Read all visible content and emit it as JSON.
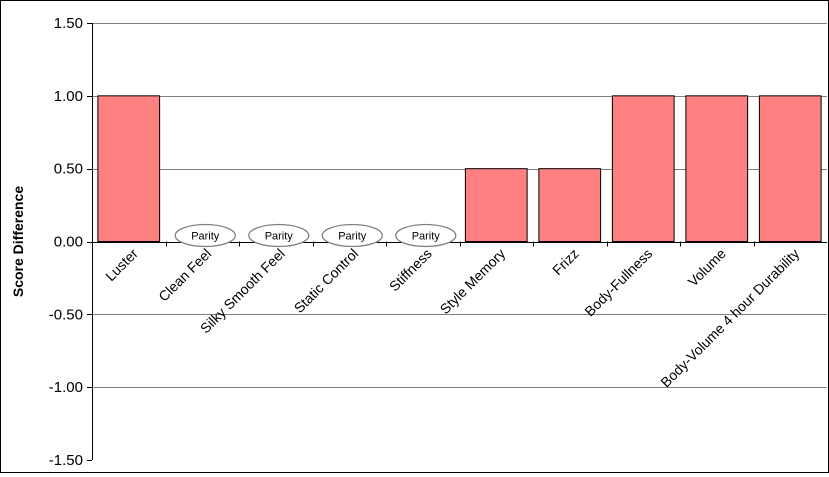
{
  "chart_data": {
    "type": "bar",
    "title": "",
    "xlabel": "",
    "ylabel": "Score Difference",
    "ylim": [
      -1.5,
      1.5
    ],
    "yticks": [
      1.5,
      1.0,
      0.5,
      0.0,
      -0.5,
      -1.0,
      -1.5
    ],
    "ytick_labels": [
      "1.50",
      "1.00",
      "0.50",
      "0.00",
      "-0.50",
      "-1.00",
      "-1.50"
    ],
    "grid": "horizontal",
    "legend": "none",
    "categories": [
      "Luster",
      "Clean Feel",
      "Silky Smooth Feel",
      "Static Control",
      "Stiffness",
      "Style Memory",
      "Frizz",
      "Body-Fullness",
      "Volume",
      "Body-Volume 4 hour Durability"
    ],
    "values": [
      1.0,
      0.0,
      0.0,
      0.0,
      0.0,
      0.5,
      0.5,
      1.0,
      1.0,
      1.0
    ],
    "annotations": [
      "",
      "Parity",
      "Parity",
      "Parity",
      "Parity",
      "",
      "",
      "",
      "",
      ""
    ],
    "bar_color": "#FF8080",
    "grid_color": "#808080"
  }
}
